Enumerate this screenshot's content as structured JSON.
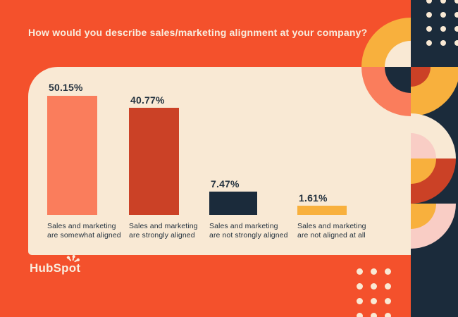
{
  "palette": {
    "orange": "#F4512C",
    "navy": "#1B2B3B",
    "cream": "#F9E9D4",
    "salmon": "#FA7D5C",
    "red": "#CB4126",
    "yellow": "#F8B03D",
    "pink": "#F9CDC5",
    "titlecream": "#F9EDDE",
    "textnavy": "#24323F"
  },
  "chart_data": {
    "type": "bar",
    "title": "How would you describe sales/marketing alignment at your company?",
    "categories": [
      "Sales and marketing are somewhat aligned",
      "Sales and marketing are strongly aligned",
      "Sales and marketing are not strongly aligned",
      "Sales and marketing are not aligned at all"
    ],
    "categories_lines": [
      [
        "Sales and marketing",
        "are somewhat aligned"
      ],
      [
        "Sales and marketing",
        "are strongly aligned"
      ],
      [
        "Sales and marketing",
        "are not strongly aligned"
      ],
      [
        "Sales and marketing",
        "are not aligned at all"
      ]
    ],
    "values": [
      50.15,
      40.77,
      7.47,
      1.61
    ],
    "value_labels": [
      "50.15%",
      "40.77%",
      "7.47%",
      "1.61%"
    ],
    "bar_colors": [
      "#FA7D5C",
      "#CB4126",
      "#1B2B3B",
      "#F8B03D"
    ],
    "xlabel": "",
    "ylabel": "",
    "ylim": [
      0,
      55
    ],
    "grid": false,
    "legend": false,
    "value_label_position": "above-bar",
    "category_label_position": "below-bar"
  },
  "logo": {
    "pre": "HubSp",
    "o": "o",
    "post": "t",
    "full_name": "HubSpot"
  }
}
